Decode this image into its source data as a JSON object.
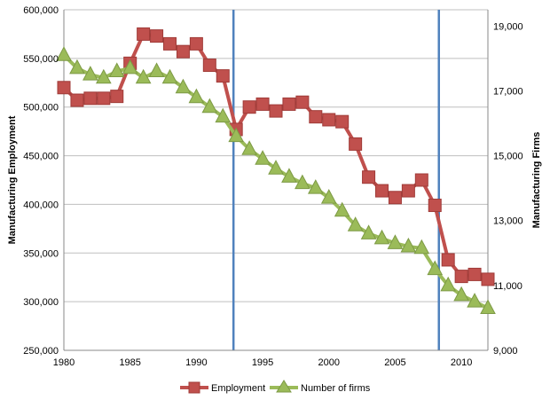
{
  "chart_data": {
    "type": "line",
    "title": "",
    "xlabel": "",
    "ylabel": "Manufacturing Employment",
    "y2label": "Manufacturing Firms",
    "xlim": [
      1980,
      2012
    ],
    "ylim": [
      250000,
      600000
    ],
    "y2lim": [
      9000,
      19500
    ],
    "x_ticks": [
      "1980",
      "1985",
      "1990",
      "1995",
      "2000",
      "2005",
      "2010"
    ],
    "y_ticks": [
      "250,000",
      "300,000",
      "350,000",
      "400,000",
      "450,000",
      "500,000",
      "550,000",
      "600,000"
    ],
    "y2_ticks": [
      "9,000",
      "11,000",
      "13,000",
      "15,000",
      "17,000",
      "19,000"
    ],
    "grid": true,
    "legend_position": "bottom",
    "vertical_lines": [
      1992.8,
      2008.3
    ],
    "series": [
      {
        "name": "Employment",
        "axis": "left",
        "color": "#c0504d",
        "marker": "square",
        "x": [
          1980,
          1981,
          1982,
          1983,
          1984,
          1985,
          1986,
          1987,
          1988,
          1989,
          1990,
          1991,
          1992,
          1993,
          1994,
          1995,
          1996,
          1997,
          1998,
          1999,
          2000,
          2001,
          2002,
          2003,
          2004,
          2005,
          2006,
          2007,
          2008,
          2009,
          2010,
          2011,
          2012
        ],
        "values": [
          520000,
          507000,
          509000,
          509000,
          511000,
          545000,
          575000,
          573000,
          565000,
          557000,
          565000,
          543000,
          532000,
          477000,
          500000,
          503000,
          496000,
          503000,
          505000,
          490000,
          487000,
          485000,
          462000,
          428000,
          414000,
          407000,
          414000,
          425000,
          399000,
          343000,
          326000,
          328000,
          323000
        ]
      },
      {
        "name": "Number of firms",
        "axis": "right",
        "color": "#9bbb59",
        "marker": "triangle",
        "x": [
          1980,
          1981,
          1982,
          1983,
          1984,
          1985,
          1986,
          1987,
          1988,
          1989,
          1990,
          1991,
          1992,
          1993,
          1994,
          1995,
          1996,
          1997,
          1998,
          1999,
          2000,
          2001,
          2002,
          2003,
          2004,
          2005,
          2006,
          2007,
          2008,
          2009,
          2010,
          2011,
          2012
        ],
        "values": [
          18100,
          17700,
          17500,
          17400,
          17600,
          17700,
          17400,
          17600,
          17400,
          17100,
          16800,
          16500,
          16200,
          15600,
          15200,
          14900,
          14600,
          14350,
          14150,
          14000,
          13700,
          13300,
          12850,
          12600,
          12450,
          12300,
          12200,
          12150,
          11500,
          11000,
          10700,
          10500,
          10300
        ]
      }
    ]
  }
}
